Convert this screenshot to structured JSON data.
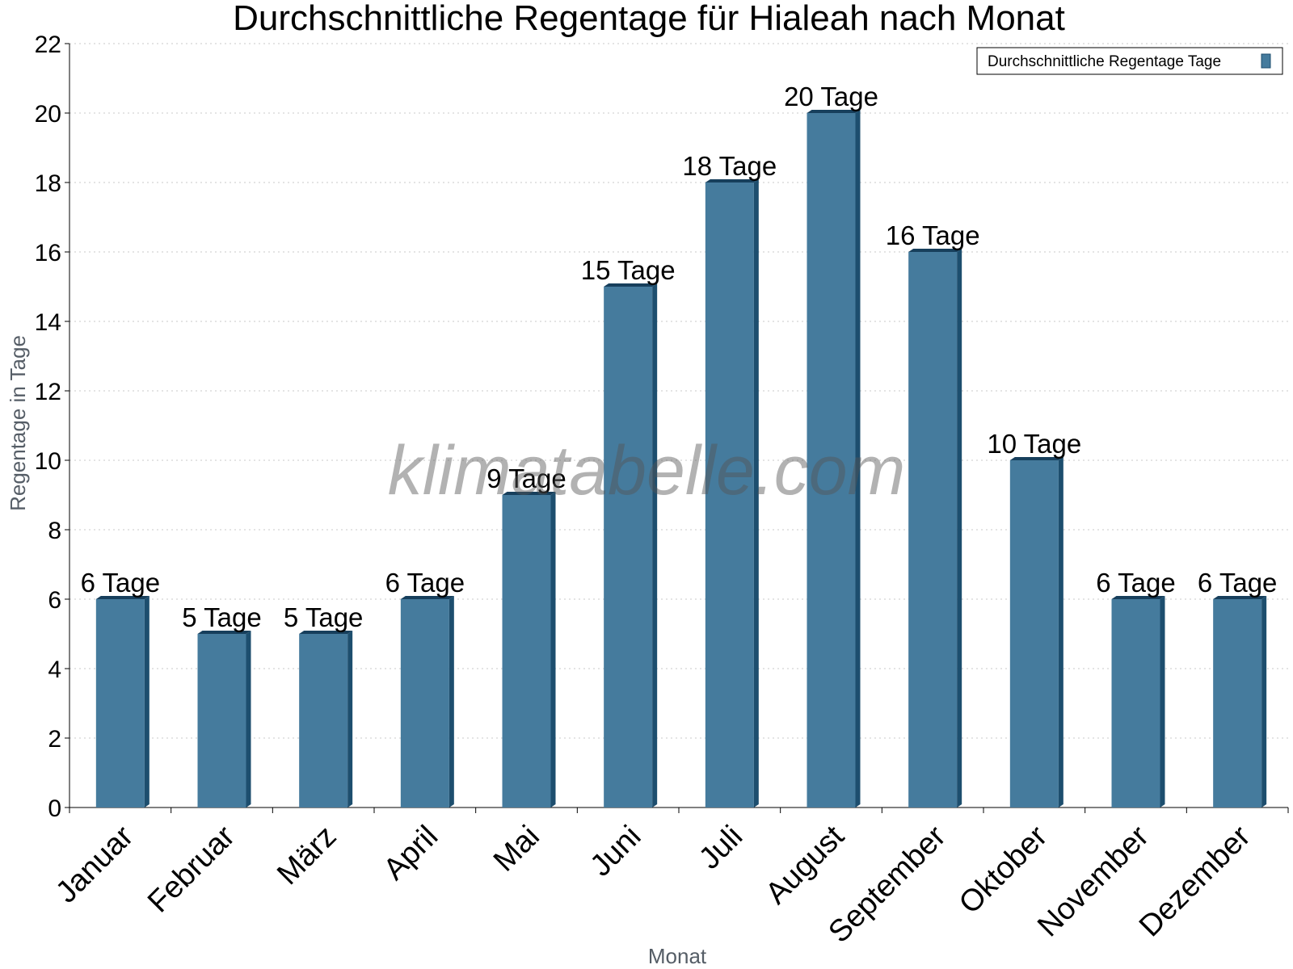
{
  "chart_data": {
    "type": "bar",
    "title": "Durchschnittliche Regentage für Hialeah nach Monat",
    "xlabel": "Monat",
    "ylabel": "Regentage in Tage",
    "ylim": [
      0,
      22
    ],
    "yticks": [
      0,
      2,
      4,
      6,
      8,
      10,
      12,
      14,
      16,
      18,
      20,
      22
    ],
    "grid": true,
    "legend_position": "top-right",
    "categories": [
      "Januar",
      "Februar",
      "März",
      "April",
      "Mai",
      "Juni",
      "Juli",
      "August",
      "September",
      "Oktober",
      "November",
      "Dezember"
    ],
    "series": [
      {
        "name": "Durchschnittliche Regentage Tage",
        "values": [
          6,
          5,
          5,
          6,
          9,
          15,
          18,
          20,
          16,
          10,
          6,
          6
        ],
        "labels": [
          "6 Tage",
          "5 Tage",
          "5 Tage",
          "6 Tage",
          "9 Tage",
          "15 Tage",
          "18 Tage",
          "20 Tage",
          "16 Tage",
          "10 Tage",
          "6 Tage",
          "6 Tage"
        ],
        "color": "#457b9d"
      }
    ]
  },
  "watermark": "klimatabelle.com",
  "colors": {
    "bar": "#457b9d",
    "bar_side": "#1d4e6e",
    "bar_top": "#173f5c",
    "grid": "#c8c8c8"
  }
}
